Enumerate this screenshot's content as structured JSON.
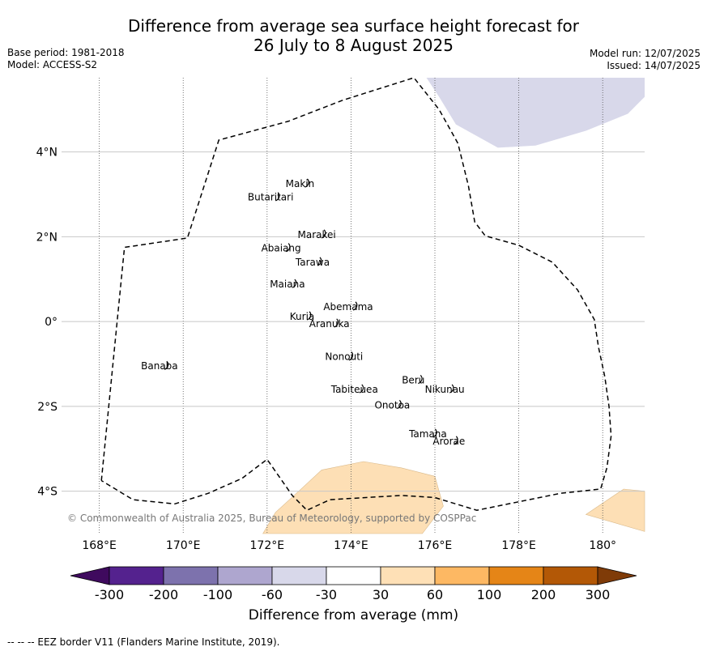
{
  "header": {
    "title_line1": "Difference from average sea surface height forecast for",
    "title_line2": "26 July to 8 August 2025",
    "base_period": "Base period: 1981-2018",
    "model": "Model: ACCESS-S2",
    "model_run": "Model run: 12/07/2025",
    "issued": "Issued: 14/07/2025"
  },
  "map": {
    "lon_ticks": [
      {
        "value": 168,
        "label": "168°E"
      },
      {
        "value": 170,
        "label": "170°E"
      },
      {
        "value": 172,
        "label": "172°E"
      },
      {
        "value": 174,
        "label": "174°E"
      },
      {
        "value": 176,
        "label": "176°E"
      },
      {
        "value": 178,
        "label": "178°E"
      },
      {
        "value": 180,
        "label": "180°"
      }
    ],
    "lat_ticks": [
      {
        "value": 4,
        "label": "4°N"
      },
      {
        "value": 2,
        "label": "2°N"
      },
      {
        "value": 0,
        "label": "0°"
      },
      {
        "value": -2,
        "label": "2°S"
      },
      {
        "value": -4,
        "label": "4°S"
      }
    ],
    "islands": [
      {
        "name": "Makin",
        "lon": 172.9,
        "lat": 3.25
      },
      {
        "name": "Butaritari",
        "lon": 172.2,
        "lat": 2.93
      },
      {
        "name": "Marakei",
        "lon": 173.3,
        "lat": 2.05
      },
      {
        "name": "Abaiang",
        "lon": 172.45,
        "lat": 1.73
      },
      {
        "name": "Tarawa",
        "lon": 173.2,
        "lat": 1.4
      },
      {
        "name": "Maiana",
        "lon": 172.6,
        "lat": 0.88
      },
      {
        "name": "Abemama",
        "lon": 174.05,
        "lat": 0.35
      },
      {
        "name": "Kuria",
        "lon": 172.95,
        "lat": 0.12
      },
      {
        "name": "Aranuka",
        "lon": 173.6,
        "lat": -0.05
      },
      {
        "name": "Nonouti",
        "lon": 173.95,
        "lat": -0.83
      },
      {
        "name": "Banaba",
        "lon": 169.55,
        "lat": -1.05
      },
      {
        "name": "Beru",
        "lon": 175.6,
        "lat": -1.38
      },
      {
        "name": "Nikunau",
        "lon": 176.35,
        "lat": -1.6
      },
      {
        "name": "Tabiteuea",
        "lon": 174.2,
        "lat": -1.6
      },
      {
        "name": "Onotoa",
        "lon": 175.1,
        "lat": -1.97
      },
      {
        "name": "Tamana",
        "lon": 175.95,
        "lat": -2.65
      },
      {
        "name": "Arorae",
        "lon": 176.45,
        "lat": -2.82
      }
    ],
    "copyright": "© Commonwealth of Australia 2025, Bureau of Meteorology, supported by COSPPac",
    "anomaly_regions": [
      {
        "category": "-60 to -30",
        "color": "#d8d8ea",
        "points": [
          [
            175.8,
            5.75
          ],
          [
            176.1,
            5.3
          ],
          [
            176.5,
            4.65
          ],
          [
            177.5,
            4.1
          ],
          [
            178.4,
            4.15
          ],
          [
            179.6,
            4.5
          ],
          [
            180.6,
            4.9
          ],
          [
            181,
            5.3
          ],
          [
            181,
            5.75
          ]
        ]
      },
      {
        "category": "30 to 60",
        "color": "#fddfb5",
        "points": [
          [
            171.9,
            -5.0
          ],
          [
            172.2,
            -4.5
          ],
          [
            172.7,
            -4.05
          ],
          [
            173.3,
            -3.5
          ],
          [
            174.3,
            -3.3
          ],
          [
            175.2,
            -3.45
          ],
          [
            176.0,
            -3.65
          ],
          [
            176.2,
            -4.35
          ],
          [
            175.7,
            -5.0
          ]
        ]
      },
      {
        "category": "30 to 60",
        "color": "#fddfb5",
        "points": [
          [
            179.6,
            -4.55
          ],
          [
            180.5,
            -3.95
          ],
          [
            181,
            -4.0
          ],
          [
            181,
            -4.95
          ]
        ]
      }
    ],
    "eez_border": [
      [
        168.05,
        -3.75
      ],
      [
        168.6,
        1.75
      ],
      [
        170.1,
        1.97
      ],
      [
        170.85,
        4.28
      ],
      [
        172.5,
        4.72
      ],
      [
        173.8,
        5.22
      ],
      [
        175.5,
        5.75
      ],
      [
        176.1,
        5.0
      ],
      [
        176.55,
        4.2
      ],
      [
        176.8,
        3.2
      ],
      [
        176.95,
        2.35
      ],
      [
        177.2,
        2.02
      ],
      [
        178.0,
        1.8
      ],
      [
        178.8,
        1.4
      ],
      [
        179.4,
        0.75
      ],
      [
        179.8,
        0.05
      ],
      [
        179.9,
        -0.6
      ],
      [
        180.05,
        -1.3
      ],
      [
        180.15,
        -2.0
      ],
      [
        180.2,
        -2.7
      ],
      [
        180.1,
        -3.45
      ],
      [
        179.95,
        -3.95
      ],
      [
        179.0,
        -4.05
      ],
      [
        177.0,
        -4.45
      ],
      [
        176.0,
        -4.15
      ],
      [
        175.2,
        -4.1
      ],
      [
        173.5,
        -4.2
      ],
      [
        172.95,
        -4.45
      ],
      [
        172.6,
        -4.1
      ],
      [
        172.0,
        -3.25
      ],
      [
        171.4,
        -3.7
      ],
      [
        170.6,
        -4.05
      ],
      [
        169.8,
        -4.3
      ],
      [
        168.8,
        -4.2
      ],
      [
        168.05,
        -3.75
      ]
    ]
  },
  "colorbar": {
    "title": "Difference from average (mm)",
    "labels": [
      "-300",
      "-200",
      "-100",
      "-60",
      "-30",
      "30",
      "60",
      "100",
      "200",
      "300"
    ],
    "colors": [
      "#3f0a5e",
      "#54228e",
      "#7d72ad",
      "#aea6cf",
      "#d8d8ea",
      "#ffffff",
      "#fee0b6",
      "#fdb863",
      "#e58517",
      "#b35806",
      "#7f3b08"
    ]
  },
  "footer": "--  --  -- EEZ border V11 (Flanders Marine Institute, 2019)."
}
